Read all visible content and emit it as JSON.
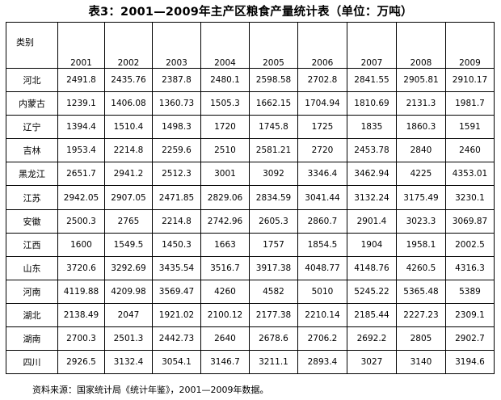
{
  "title": "表3：2001—2009年主产区粮食产量统计表（单位：万吨）",
  "table": {
    "category_header": "类别",
    "years": [
      "2001",
      "2002",
      "2003",
      "2004",
      "2005",
      "2006",
      "2007",
      "2008",
      "2009"
    ],
    "rows": [
      {
        "region": "河北",
        "values": [
          "2491.8",
          "2435.76",
          "2387.8",
          "2480.1",
          "2598.58",
          "2702.8",
          "2841.55",
          "2905.81",
          "2910.17"
        ]
      },
      {
        "region": "内蒙古",
        "values": [
          "1239.1",
          "1406.08",
          "1360.73",
          "1505.3",
          "1662.15",
          "1704.94",
          "1810.69",
          "2131.3",
          "1981.7"
        ]
      },
      {
        "region": "辽宁",
        "values": [
          "1394.4",
          "1510.4",
          "1498.3",
          "1720",
          "1745.8",
          "1725",
          "1835",
          "1860.3",
          "1591"
        ]
      },
      {
        "region": "吉林",
        "values": [
          "1953.4",
          "2214.8",
          "2259.6",
          "2510",
          "2581.21",
          "2720",
          "2453.78",
          "2840",
          "2460"
        ]
      },
      {
        "region": "黑龙江",
        "values": [
          "2651.7",
          "2941.2",
          "2512.3",
          "3001",
          "3092",
          "3346.4",
          "3462.94",
          "4225",
          "4353.01"
        ]
      },
      {
        "region": "江苏",
        "values": [
          "2942.05",
          "2907.05",
          "2471.85",
          "2829.06",
          "2834.59",
          "3041.44",
          "3132.24",
          "3175.49",
          "3230.1"
        ]
      },
      {
        "region": "安徽",
        "values": [
          "2500.3",
          "2765",
          "2214.8",
          "2742.96",
          "2605.3",
          "2860.7",
          "2901.4",
          "3023.3",
          "3069.87"
        ]
      },
      {
        "region": "江西",
        "values": [
          "1600",
          "1549.5",
          "1450.3",
          "1663",
          "1757",
          "1854.5",
          "1904",
          "1958.1",
          "2002.5"
        ]
      },
      {
        "region": "山东",
        "values": [
          "3720.6",
          "3292.69",
          "3435.54",
          "3516.7",
          "3917.38",
          "4048.77",
          "4148.76",
          "4260.5",
          "4316.3"
        ]
      },
      {
        "region": "河南",
        "values": [
          "4119.88",
          "4209.98",
          "3569.47",
          "4260",
          "4582",
          "5010",
          "5245.22",
          "5365.48",
          "5389"
        ]
      },
      {
        "region": "湖北",
        "values": [
          "2138.49",
          "2047",
          "1921.02",
          "2100.12",
          "2177.38",
          "2210.14",
          "2185.44",
          "2227.23",
          "2309.1"
        ]
      },
      {
        "region": "湖南",
        "values": [
          "2700.3",
          "2501.3",
          "2442.73",
          "2640",
          "2678.6",
          "2706.2",
          "2692.2",
          "2805",
          "2902.7"
        ]
      },
      {
        "region": "四川",
        "values": [
          "2926.5",
          "3132.4",
          "3054.1",
          "3146.7",
          "3211.1",
          "2893.4",
          "3027",
          "3140",
          "3194.6"
        ]
      }
    ]
  },
  "source": "资料来源：国家统计局《统计年鉴》，2001—2009年数据。"
}
